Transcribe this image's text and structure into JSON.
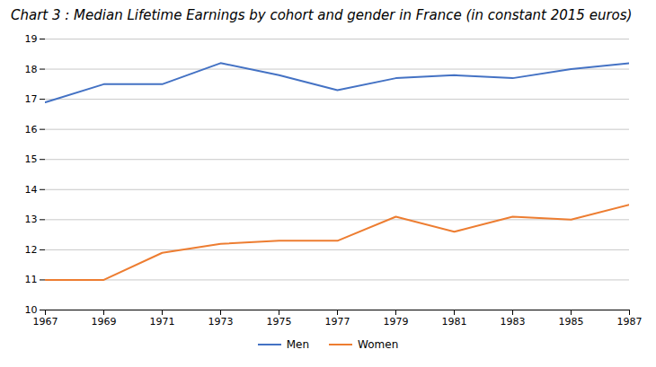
{
  "chart_data": {
    "type": "line",
    "title": "Chart 3 : Median Lifetime Earnings by cohort and gender in France (in constant 2015 euros)",
    "x": [
      1967,
      1969,
      1971,
      1973,
      1975,
      1977,
      1979,
      1981,
      1983,
      1985,
      1987
    ],
    "series": [
      {
        "name": "Men",
        "color": "#4472C4",
        "values": [
          16.9,
          17.5,
          17.5,
          18.2,
          17.8,
          17.3,
          17.7,
          17.8,
          17.7,
          18.0,
          18.2
        ]
      },
      {
        "name": "Women",
        "color": "#ED7D31",
        "values": [
          11.0,
          11.0,
          11.9,
          12.2,
          12.3,
          12.3,
          13.1,
          12.6,
          13.1,
          13.0,
          13.5
        ]
      }
    ],
    "xlim": [
      1967,
      1987
    ],
    "xticks": [
      1967,
      1969,
      1971,
      1973,
      1975,
      1977,
      1979,
      1981,
      1983,
      1985,
      1987
    ],
    "ylim": [
      10,
      19
    ],
    "yticks": [
      10,
      11,
      12,
      13,
      14,
      15,
      16,
      17,
      18,
      19
    ],
    "grid": true,
    "legend": "bottom"
  }
}
